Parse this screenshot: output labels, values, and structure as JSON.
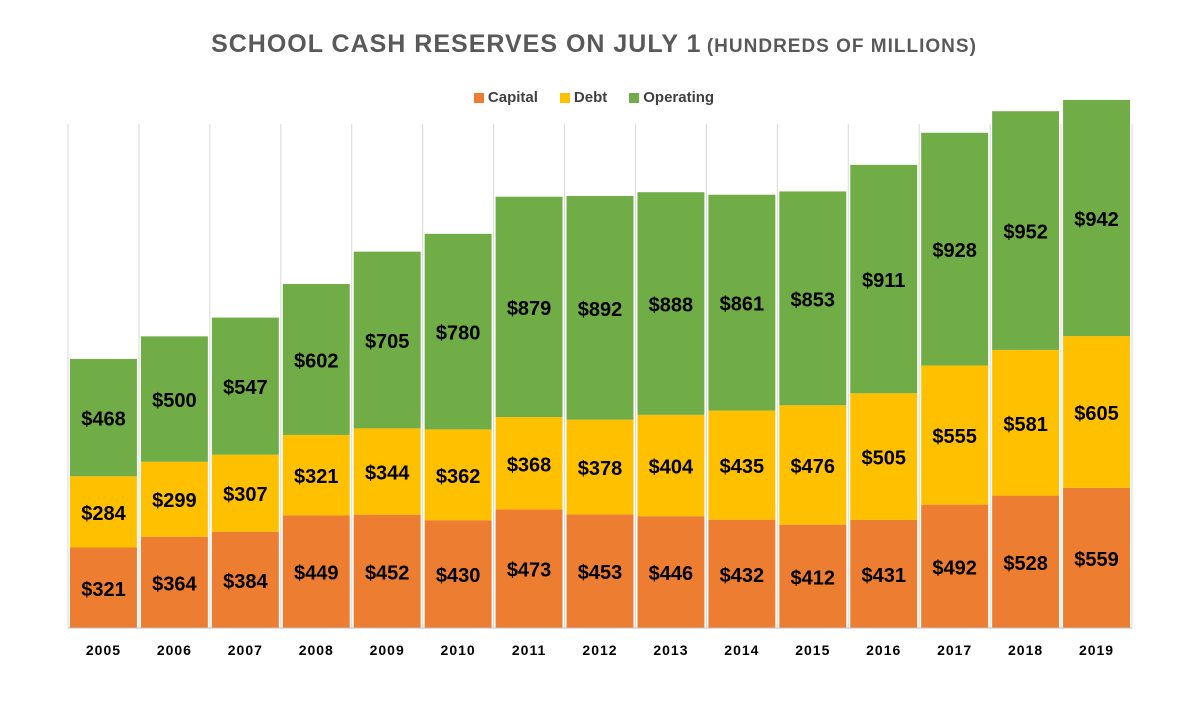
{
  "chart_data": {
    "type": "bar",
    "stacked": true,
    "title": "SCHOOL CASH RESERVES ON JULY 1",
    "subtitle": "(HUNDREDS OF MILLIONS)",
    "categories": [
      "2005",
      "2006",
      "2007",
      "2008",
      "2009",
      "2010",
      "2011",
      "2012",
      "2013",
      "2014",
      "2015",
      "2016",
      "2017",
      "2018",
      "2019"
    ],
    "series": [
      {
        "name": "Capital",
        "color": "#ED7D31",
        "values": [
          321,
          364,
          384,
          449,
          452,
          430,
          473,
          453,
          446,
          432,
          412,
          431,
          492,
          528,
          559
        ],
        "labels": [
          "$321",
          "$364",
          "$384",
          "$449",
          "$452",
          "$430",
          "$473",
          "$453",
          "$446",
          "$432",
          "$412",
          "$431",
          "$492",
          "$528",
          "$559"
        ]
      },
      {
        "name": "Debt",
        "color": "#FFC000",
        "values": [
          284,
          299,
          307,
          321,
          344,
          362,
          368,
          378,
          404,
          435,
          476,
          505,
          555,
          581,
          605
        ],
        "labels": [
          "$284",
          "$299",
          "$307",
          "$321",
          "$344",
          "$362",
          "$368",
          "$378",
          "$404",
          "$435",
          "$476",
          "$505",
          "$555",
          "$581",
          "$605"
        ]
      },
      {
        "name": "Operating",
        "color": "#70AD47",
        "values": [
          468,
          500,
          547,
          602,
          705,
          780,
          879,
          892,
          888,
          861,
          853,
          911,
          928,
          952,
          942
        ],
        "labels": [
          "$468",
          "$500",
          "$547",
          "$602",
          "$705",
          "$780",
          "$879",
          "$892",
          "$888",
          "$861",
          "$853",
          "$911",
          "$928",
          "$952",
          "$942"
        ]
      }
    ],
    "ylim": [
      0,
      2010
    ],
    "legend_position": "top-center",
    "grid": "vertical lines between categories"
  }
}
